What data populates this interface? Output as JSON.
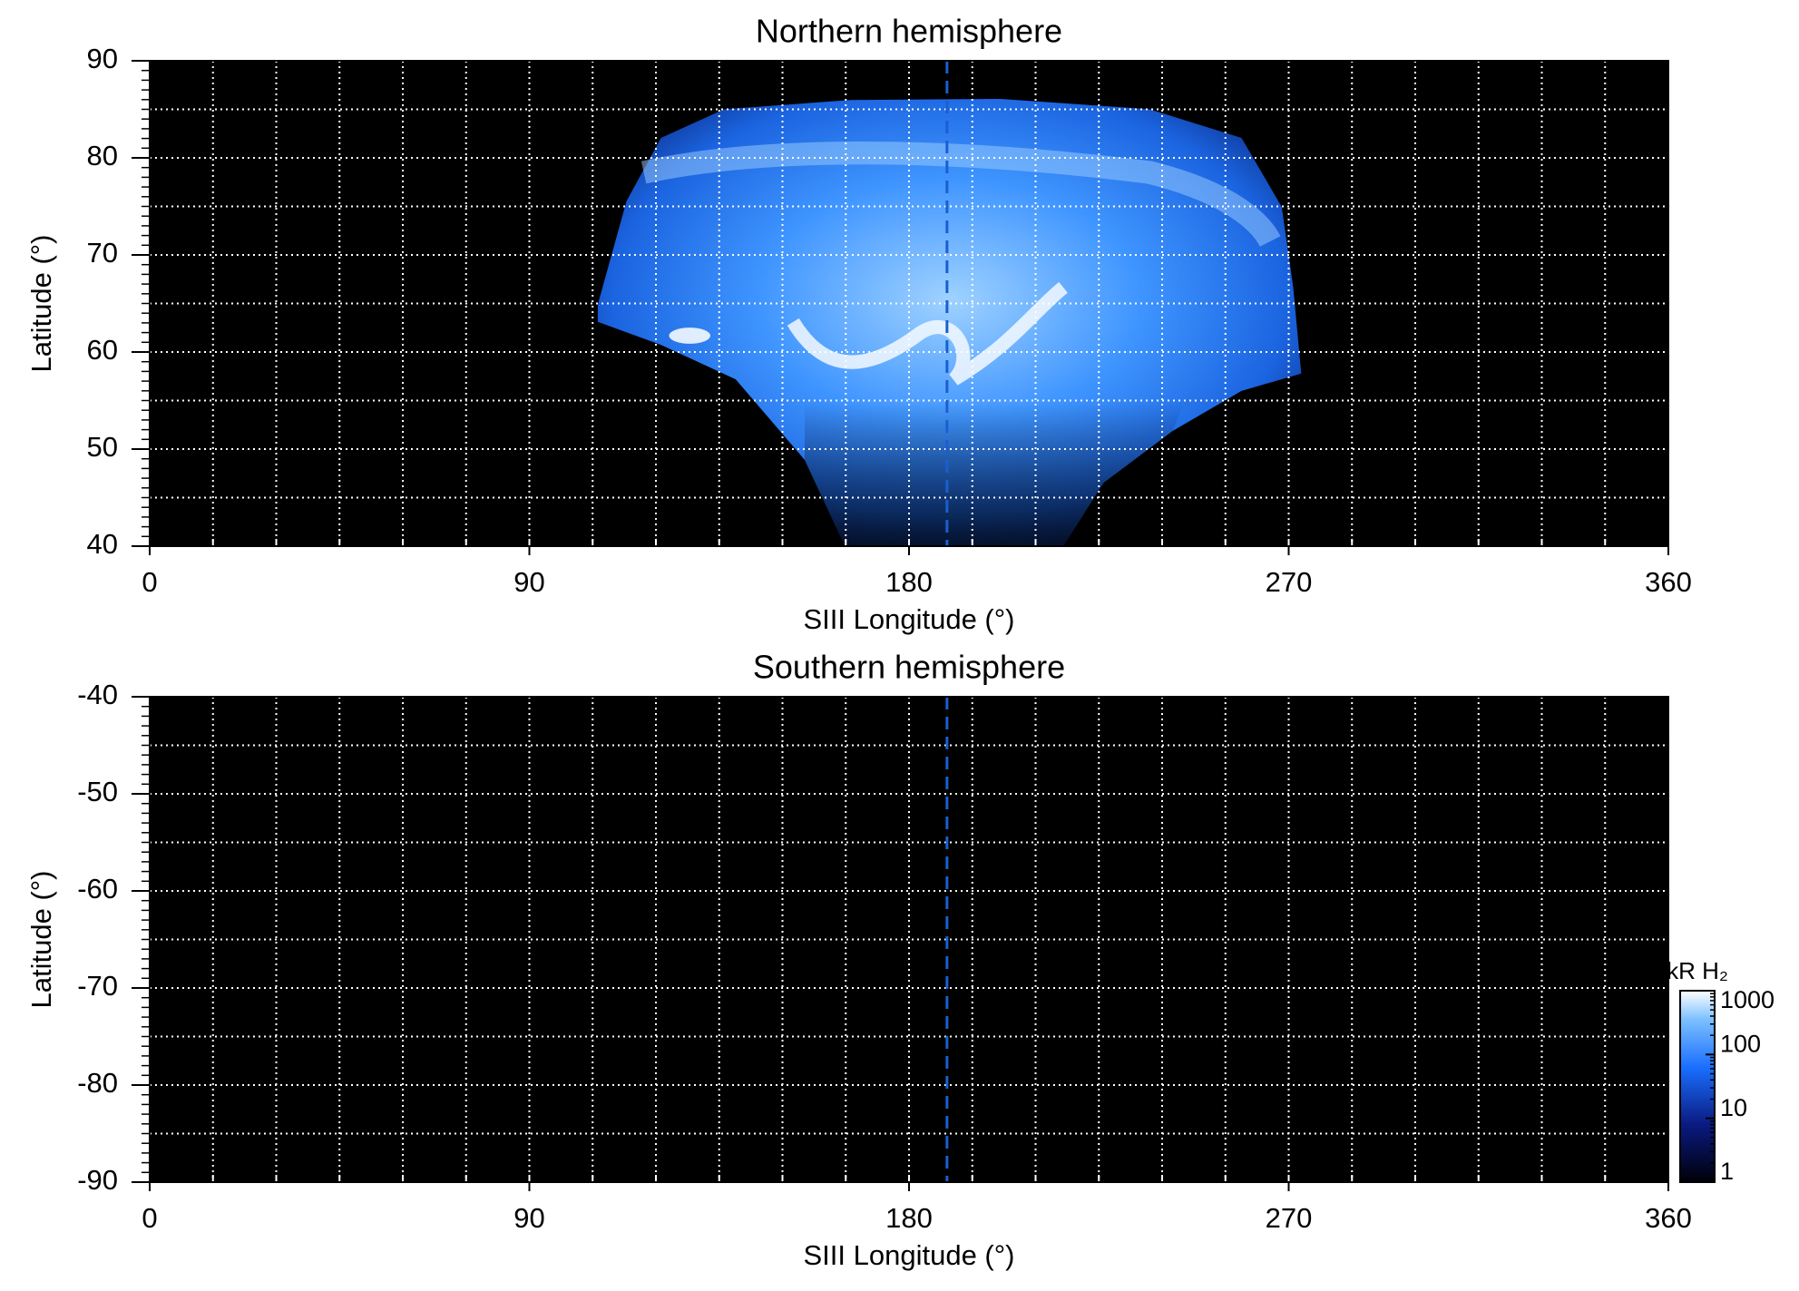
{
  "chart_data": [
    {
      "type": "heatmap",
      "title": "Northern hemisphere",
      "x_label": "SIII Longitude (°)",
      "y_label": "Latitude (°)",
      "xlim": [
        0,
        360
      ],
      "xticks": [
        0,
        90,
        180,
        270,
        360
      ],
      "ylim": [
        40,
        90
      ],
      "yticks": [
        40,
        50,
        60,
        70,
        80,
        90
      ],
      "xgrid_step": 15,
      "ygrid_step": 5,
      "yminor_step": 1,
      "marker_x": 189,
      "background": "#000000",
      "aurora": true
    },
    {
      "type": "heatmap",
      "title": "Southern hemisphere",
      "x_label": "SIII Longitude (°)",
      "y_label": "Latitude (°)",
      "xlim": [
        0,
        360
      ],
      "xticks": [
        0,
        90,
        180,
        270,
        360
      ],
      "ylim": [
        -90,
        -40
      ],
      "yticks": [
        -90,
        -80,
        -70,
        -60,
        -50,
        -40
      ],
      "xgrid_step": 15,
      "ygrid_step": 5,
      "yminor_step": 1,
      "marker_x": 189,
      "background": "#000000",
      "aurora": false
    },
    {
      "type": "colorbar",
      "label": "kR H₂",
      "log": true,
      "lim": [
        1,
        1000
      ],
      "ticks": [
        1,
        10,
        100,
        1000
      ]
    }
  ]
}
